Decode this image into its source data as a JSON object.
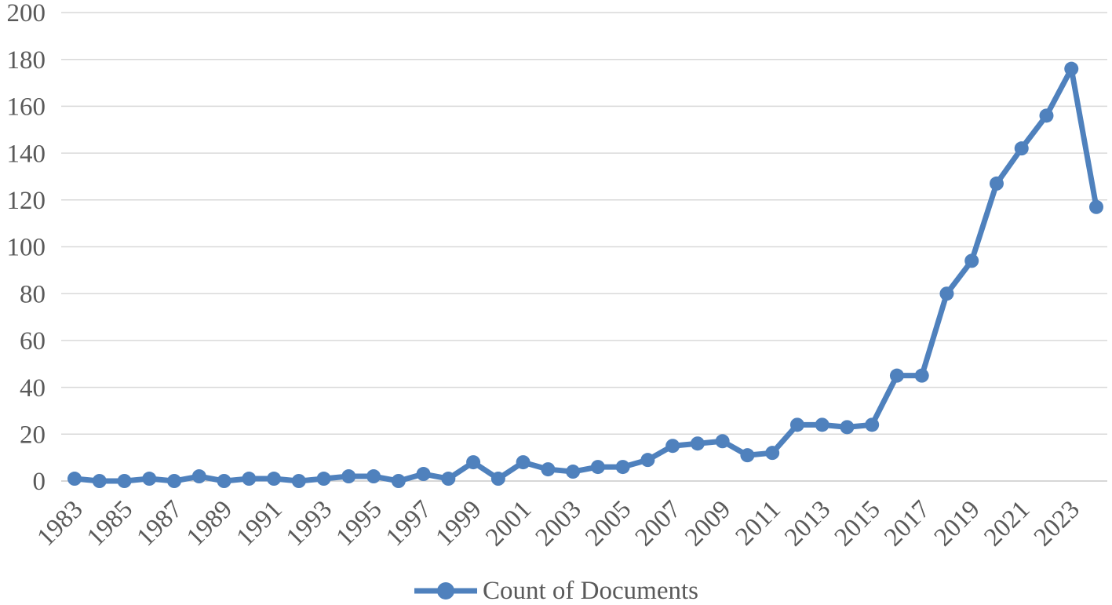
{
  "chart_data": {
    "type": "line",
    "title": "",
    "xlabel": "",
    "ylabel": "",
    "x": [
      1983,
      1984,
      1985,
      1986,
      1987,
      1988,
      1989,
      1990,
      1991,
      1992,
      1993,
      1994,
      1995,
      1996,
      1997,
      1998,
      1999,
      2000,
      2001,
      2002,
      2003,
      2004,
      2005,
      2006,
      2007,
      2008,
      2009,
      2010,
      2011,
      2012,
      2013,
      2014,
      2015,
      2016,
      2017,
      2018,
      2019,
      2020,
      2021,
      2022,
      2023,
      2024
    ],
    "series": [
      {
        "name": "Count of Documents",
        "values": [
          1,
          0,
          0,
          1,
          0,
          2,
          0,
          1,
          1,
          0,
          1,
          2,
          2,
          0,
          3,
          1,
          8,
          1,
          8,
          5,
          4,
          6,
          6,
          9,
          15,
          16,
          17,
          11,
          12,
          24,
          24,
          23,
          24,
          45,
          45,
          80,
          94,
          127,
          142,
          156,
          176,
          117
        ]
      }
    ],
    "ylim": [
      0,
      200
    ],
    "ytick_labels": [
      "0",
      "20",
      "40",
      "60",
      "80",
      "100",
      "120",
      "140",
      "160",
      "180",
      "200"
    ],
    "xtick_labels": [
      "1983",
      "1985",
      "1987",
      "1989",
      "1991",
      "1993",
      "1995",
      "1997",
      "1999",
      "2001",
      "2003",
      "2005",
      "2007",
      "2009",
      "2011",
      "2013",
      "2015",
      "2017",
      "2019",
      "2021",
      "2023"
    ],
    "grid": true,
    "legend_position": "bottom-center",
    "marker": "circle",
    "colors": {
      "line": "#4F81BD",
      "axis_text": "#595959",
      "gridline": "#D9D9D9",
      "zero_line": "#C9C9C9",
      "background": "#FFFFFF"
    }
  },
  "legend": {
    "label": "Count of Documents"
  }
}
